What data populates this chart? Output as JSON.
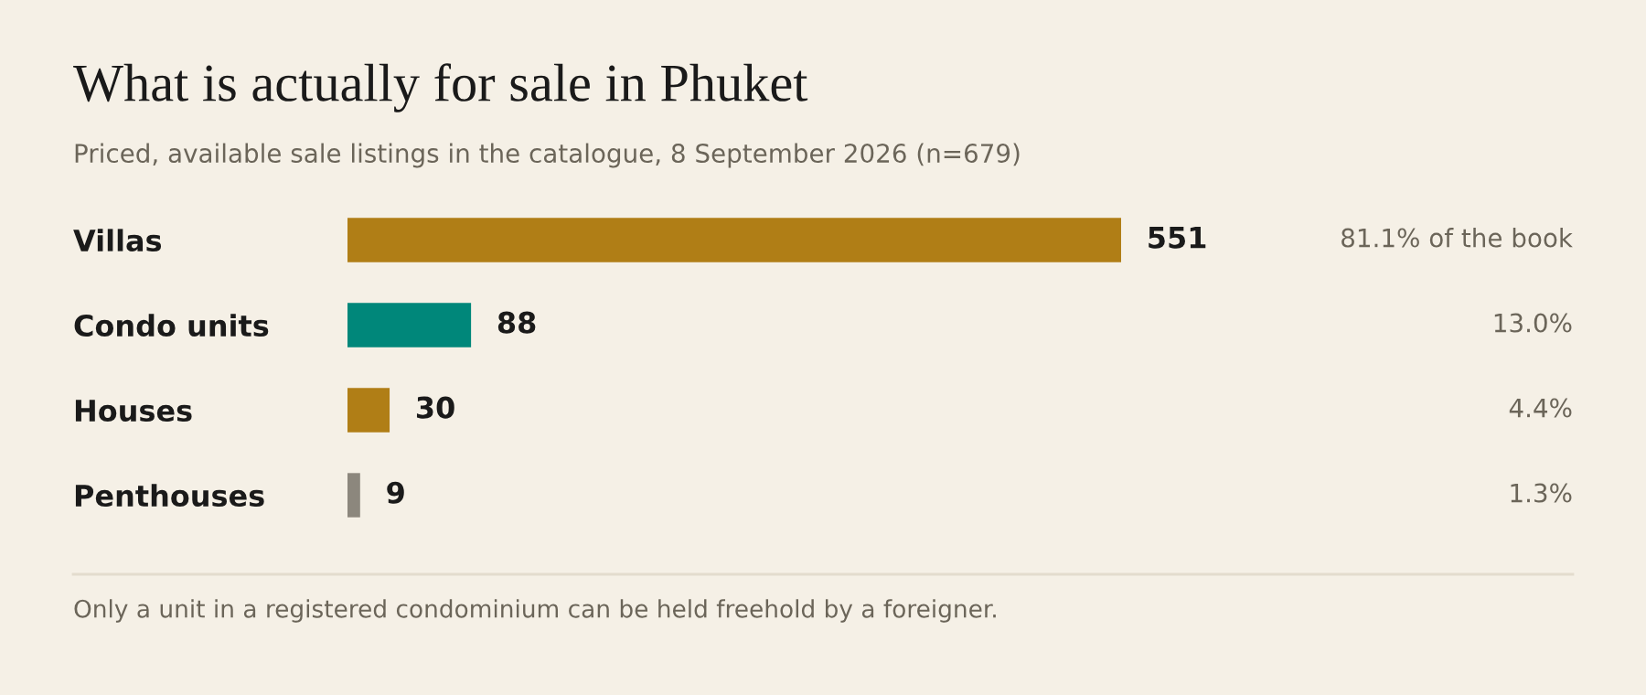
{
  "chart_data": {
    "type": "bar",
    "orientation": "horizontal",
    "title": "What is actually for sale in Phuket",
    "subtitle": "Priced, available sale listings in the catalogue, 8 September 2026 (n=679)",
    "categories": [
      "Villas",
      "Condo units",
      "Houses",
      "Penthouses"
    ],
    "values": [
      551,
      88,
      30,
      9
    ],
    "colors": [
      "#b07e16",
      "#00877a",
      "#b07e16",
      "#8c877d"
    ],
    "data_labels": true,
    "annotations": [
      "81.1% of the book",
      "13.0%",
      "4.4%",
      "1.3%",
      "Only a unit in a registered condominium can be held freehold by a foreigner."
    ],
    "grid": false,
    "legend": false
  }
}
